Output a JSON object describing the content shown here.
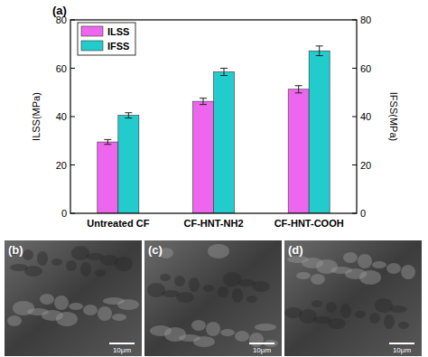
{
  "chart_data": {
    "type": "bar",
    "panel_label": "(a)",
    "categories": [
      "Untreated CF",
      "CF-HNT-NH2",
      "CF-HNT-COOH"
    ],
    "series": [
      {
        "name": "ILSS",
        "color": "#ee66ee",
        "values": [
          29.5,
          46.3,
          51.3
        ],
        "errors": [
          1.0,
          1.3,
          1.5
        ]
      },
      {
        "name": "IFSS",
        "color": "#22cccc",
        "axis": "y2",
        "values": [
          40.5,
          58.5,
          67.2
        ],
        "errors": [
          1.1,
          1.5,
          2.0
        ]
      }
    ],
    "y_label": "ILSS(MPa)",
    "y2_label": "IFSS(MPa)",
    "ylim": [
      0,
      80
    ],
    "yticks": [
      0,
      20,
      40,
      60,
      80
    ],
    "y2lim": [
      0,
      80
    ],
    "y2ticks": [
      0,
      20,
      40,
      60,
      80
    ],
    "legend": "top-left"
  },
  "images": [
    {
      "label": "(b)",
      "scale_bar": "10μm"
    },
    {
      "label": "(c)",
      "scale_bar": "10μm"
    },
    {
      "label": "(d)",
      "scale_bar": "10μm"
    }
  ]
}
